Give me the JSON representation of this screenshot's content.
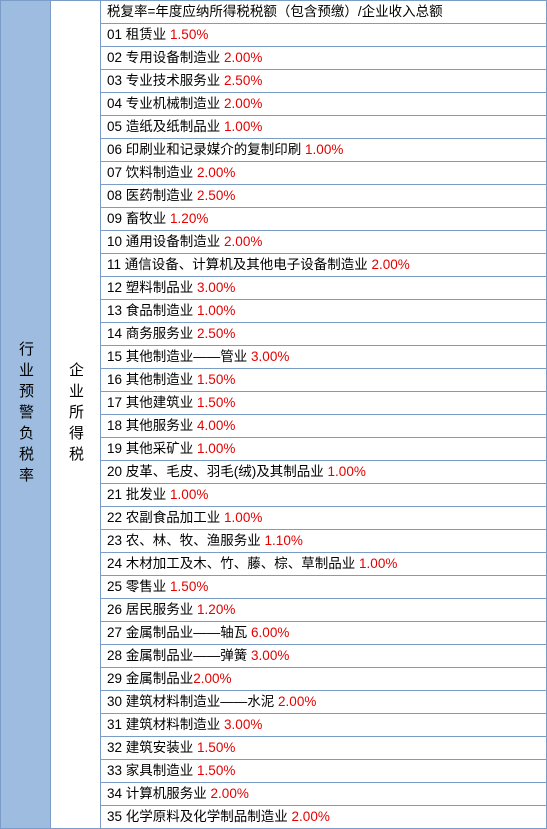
{
  "left_column_label": "行业预警负税率",
  "mid_column_label": "企业所得税",
  "formula": "税复率=年度应纳所得税税额（包含预缴）/企业收入总额",
  "pct_color": "#e60000",
  "text_color": "#000000",
  "left_bg_color": "#9ebce0",
  "border_color": "#7a9cc6",
  "rows": [
    {
      "num": "01",
      "label": "租赁业",
      "pct": "1.50%"
    },
    {
      "num": "02",
      "label": "专用设备制造业",
      "pct": "2.00%"
    },
    {
      "num": "03",
      "label": "专业技术服务业",
      "pct": "2.50%"
    },
    {
      "num": "04",
      "label": "专业机械制造业",
      "pct": "2.00%"
    },
    {
      "num": "05",
      "label": "造纸及纸制品业",
      "pct": "1.00%"
    },
    {
      "num": "06",
      "label": "印刷业和记录媒介的复制印刷",
      "pct": "1.00%"
    },
    {
      "num": "07",
      "label": "饮料制造业",
      "pct": "2.00%"
    },
    {
      "num": "08",
      "label": "医药制造业",
      "pct": "2.50%"
    },
    {
      "num": "09",
      "label": "畜牧业",
      "pct": "1.20%"
    },
    {
      "num": "10",
      "label": "通用设备制造业",
      "pct": "2.00%"
    },
    {
      "num": "11",
      "label": "通信设备、计算机及其他电子设备制造业",
      "pct": "2.00%"
    },
    {
      "num": "12",
      "label": "塑料制品业",
      "pct": "3.00%"
    },
    {
      "num": "13",
      "label": "食品制造业",
      "pct": "1.00%"
    },
    {
      "num": "14",
      "label": "商务服务业",
      "pct": "2.50%"
    },
    {
      "num": "15",
      "label": "其他制造业——管业",
      "pct": "3.00%"
    },
    {
      "num": "16",
      "label": "其他制造业",
      "pct": "1.50%"
    },
    {
      "num": "17",
      "label": "其他建筑业",
      "pct": "1.50%"
    },
    {
      "num": "18",
      "label": "其他服务业",
      "pct": "4.00%"
    },
    {
      "num": "19",
      "label": "其他采矿业",
      "pct": "1.00%"
    },
    {
      "num": "20",
      "label": "皮革、毛皮、羽毛(绒)及其制品业",
      "pct": "1.00%"
    },
    {
      "num": "21",
      "label": "批发业",
      "pct": "1.00%"
    },
    {
      "num": "22",
      "label": "农副食品加工业",
      "pct": "1.00%"
    },
    {
      "num": "23",
      "label": "农、林、牧、渔服务业",
      "pct": "1.10%"
    },
    {
      "num": "24",
      "label": "木材加工及木、竹、藤、棕、草制品业",
      "pct": "1.00%"
    },
    {
      "num": "25",
      "label": "零售业",
      "pct": "1.50%"
    },
    {
      "num": "26",
      "label": "居民服务业",
      "pct": "1.20%"
    },
    {
      "num": "27",
      "label": "金属制品业——轴瓦",
      "pct": "6.00%"
    },
    {
      "num": "28",
      "label": "金属制品业——弹簧",
      "pct": "3.00%"
    },
    {
      "num": "29",
      "label": "金属制品业",
      "pct": "2.00%",
      "nospace": true
    },
    {
      "num": "30",
      "label": "建筑材料制造业——水泥",
      "pct": "2.00%"
    },
    {
      "num": "31",
      "label": "建筑材料制造业",
      "pct": "3.00%"
    },
    {
      "num": "32",
      "label": "建筑安装业",
      "pct": "1.50%"
    },
    {
      "num": "33",
      "label": "家具制造业",
      "pct": "1.50%"
    },
    {
      "num": "34",
      "label": "计算机服务业",
      "pct": "2.00%"
    },
    {
      "num": "35",
      "label": "化学原料及化学制品制造业",
      "pct": "2.00%"
    }
  ]
}
